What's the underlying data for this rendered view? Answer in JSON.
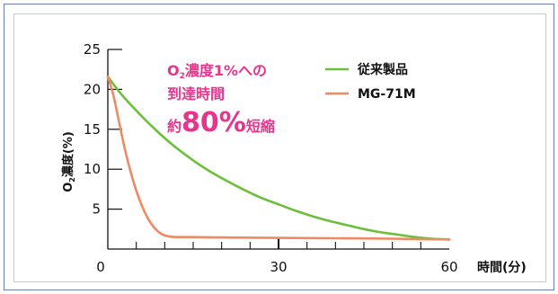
{
  "chart_data": {
    "type": "line",
    "xlabel": "時間(分)",
    "ylabel": {
      "main": "O",
      "sub": "2",
      "rest": "濃度(%)"
    },
    "xlim": [
      0,
      60
    ],
    "ylim": [
      0,
      25
    ],
    "x_ticks": [
      0,
      30,
      60
    ],
    "y_ticks": [
      5,
      10,
      15,
      20,
      25
    ],
    "annotation": {
      "line1_o": "O",
      "line1_sub": "2",
      "line1_rest": "濃度1%への",
      "line2": "到達時間",
      "line3_pre": "約",
      "line3_big": "80%",
      "line3_post": "短縮"
    },
    "series": [
      {
        "name": "従来製品",
        "color": "#6cbf3a",
        "x": [
          0,
          2,
          4,
          6,
          8,
          10,
          12,
          15,
          18,
          21,
          24,
          27,
          30,
          33,
          36,
          39,
          42,
          45,
          48,
          51,
          54,
          57,
          60
        ],
        "y": [
          21.6,
          19.7,
          18.1,
          16.6,
          15.2,
          13.9,
          12.7,
          11.1,
          9.7,
          8.5,
          7.4,
          6.4,
          5.6,
          4.8,
          4.1,
          3.5,
          3.0,
          2.5,
          2.1,
          1.8,
          1.5,
          1.3,
          1.2
        ]
      },
      {
        "name": "MG-71M",
        "color": "#ee8a63",
        "x": [
          0,
          1,
          2,
          3,
          4,
          5,
          6,
          7,
          8,
          9,
          10,
          11,
          12,
          15,
          20,
          30,
          40,
          50,
          60
        ],
        "y": [
          21.6,
          19.2,
          15.8,
          12.5,
          9.7,
          7.3,
          5.4,
          3.9,
          2.8,
          2.1,
          1.7,
          1.55,
          1.5,
          1.5,
          1.45,
          1.4,
          1.35,
          1.3,
          1.2
        ]
      }
    ]
  }
}
